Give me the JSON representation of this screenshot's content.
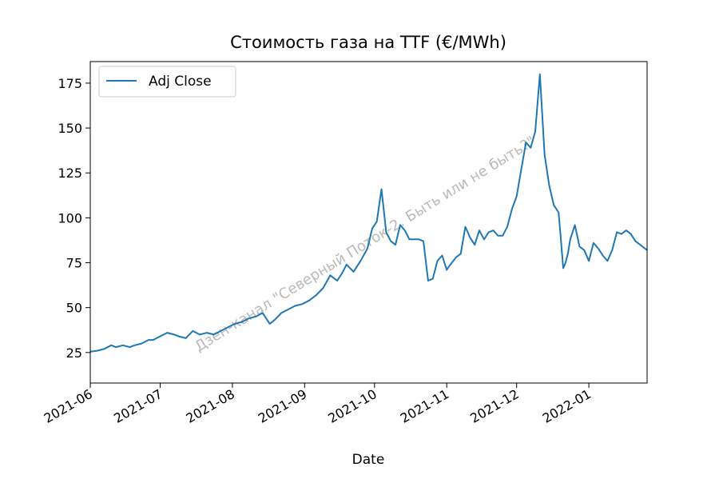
{
  "chart_data": {
    "type": "line",
    "title": "Стоимость газа на TTF (€/MWh)",
    "xlabel": "Date",
    "ylabel": "",
    "xlim": [
      "2021-06-01",
      "2022-01-26"
    ],
    "ylim": [
      8,
      187
    ],
    "y_ticks": [
      25,
      50,
      75,
      100,
      125,
      150,
      175
    ],
    "x_ticks": [
      {
        "date": "2021-06-01",
        "label": "2021-06"
      },
      {
        "date": "2021-07-01",
        "label": "2021-07"
      },
      {
        "date": "2021-08-01",
        "label": "2021-08"
      },
      {
        "date": "2021-09-01",
        "label": "2021-09"
      },
      {
        "date": "2021-10-01",
        "label": "2021-10"
      },
      {
        "date": "2021-11-01",
        "label": "2021-11"
      },
      {
        "date": "2021-12-01",
        "label": "2021-12"
      },
      {
        "date": "2022-01-01",
        "label": "2022-01"
      }
    ],
    "legend": {
      "position": "upper-left",
      "entries": [
        "Adj Close"
      ]
    },
    "grid": false,
    "watermark": "Дзен-канал \"Северный Поток-2. Быть или не быть?\"",
    "series": [
      {
        "name": "Adj Close",
        "color": "#1f77b4",
        "x": [
          "2021-06-01",
          "2021-06-04",
          "2021-06-07",
          "2021-06-10",
          "2021-06-12",
          "2021-06-15",
          "2021-06-18",
          "2021-06-20",
          "2021-06-23",
          "2021-06-26",
          "2021-06-28",
          "2021-07-01",
          "2021-07-04",
          "2021-07-07",
          "2021-07-09",
          "2021-07-12",
          "2021-07-15",
          "2021-07-18",
          "2021-07-21",
          "2021-07-24",
          "2021-07-27",
          "2021-07-30",
          "2021-08-02",
          "2021-08-05",
          "2021-08-08",
          "2021-08-11",
          "2021-08-14",
          "2021-08-17",
          "2021-08-19",
          "2021-08-22",
          "2021-08-25",
          "2021-08-28",
          "2021-08-31",
          "2021-09-03",
          "2021-09-06",
          "2021-09-09",
          "2021-09-12",
          "2021-09-15",
          "2021-09-17",
          "2021-09-19",
          "2021-09-22",
          "2021-09-25",
          "2021-09-28",
          "2021-09-30",
          "2021-10-02",
          "2021-10-04",
          "2021-10-06",
          "2021-10-08",
          "2021-10-10",
          "2021-10-12",
          "2021-10-14",
          "2021-10-16",
          "2021-10-18",
          "2021-10-20",
          "2021-10-22",
          "2021-10-24",
          "2021-10-26",
          "2021-10-28",
          "2021-10-30",
          "2021-11-01",
          "2021-11-02",
          "2021-11-05",
          "2021-11-07",
          "2021-11-09",
          "2021-11-11",
          "2021-11-13",
          "2021-11-15",
          "2021-11-17",
          "2021-11-19",
          "2021-11-21",
          "2021-11-23",
          "2021-11-25",
          "2021-11-27",
          "2021-11-29",
          "2021-12-01",
          "2021-12-03",
          "2021-12-05",
          "2021-12-07",
          "2021-12-09",
          "2021-12-11",
          "2021-12-13",
          "2021-12-15",
          "2021-12-17",
          "2021-12-19",
          "2021-12-20",
          "2021-12-21",
          "2021-12-22",
          "2021-12-23",
          "2021-12-24",
          "2021-12-26",
          "2021-12-28",
          "2021-12-30",
          "2022-01-01",
          "2022-01-03",
          "2022-01-05",
          "2022-01-07",
          "2022-01-09",
          "2022-01-11",
          "2022-01-13",
          "2022-01-15",
          "2022-01-17",
          "2022-01-19",
          "2022-01-21",
          "2022-01-23",
          "2022-01-26"
        ],
        "values": [
          25.5,
          26,
          27,
          29,
          28,
          29,
          28,
          29,
          30,
          32,
          32,
          34,
          36,
          35,
          34,
          33,
          37,
          35,
          36,
          35,
          37,
          39,
          41,
          42,
          44,
          45,
          47,
          41,
          43,
          47,
          49,
          51,
          52,
          54,
          57,
          61,
          68,
          65,
          69,
          74,
          70,
          76,
          83,
          94,
          98,
          116,
          92,
          87,
          85,
          96,
          93,
          88,
          88,
          88,
          87,
          65,
          66,
          76,
          79,
          71,
          73,
          78,
          80,
          95,
          89,
          85,
          93,
          88,
          92,
          93,
          90,
          90,
          95,
          105,
          112,
          127,
          142,
          139,
          148,
          180,
          135,
          118,
          107,
          103,
          88,
          72,
          75,
          80,
          88,
          96,
          84,
          82,
          76,
          86,
          83,
          79,
          76,
          82,
          92,
          91,
          93,
          91,
          87,
          85,
          82
        ],
        "note": "values are approximate readings from the chart"
      }
    ]
  }
}
